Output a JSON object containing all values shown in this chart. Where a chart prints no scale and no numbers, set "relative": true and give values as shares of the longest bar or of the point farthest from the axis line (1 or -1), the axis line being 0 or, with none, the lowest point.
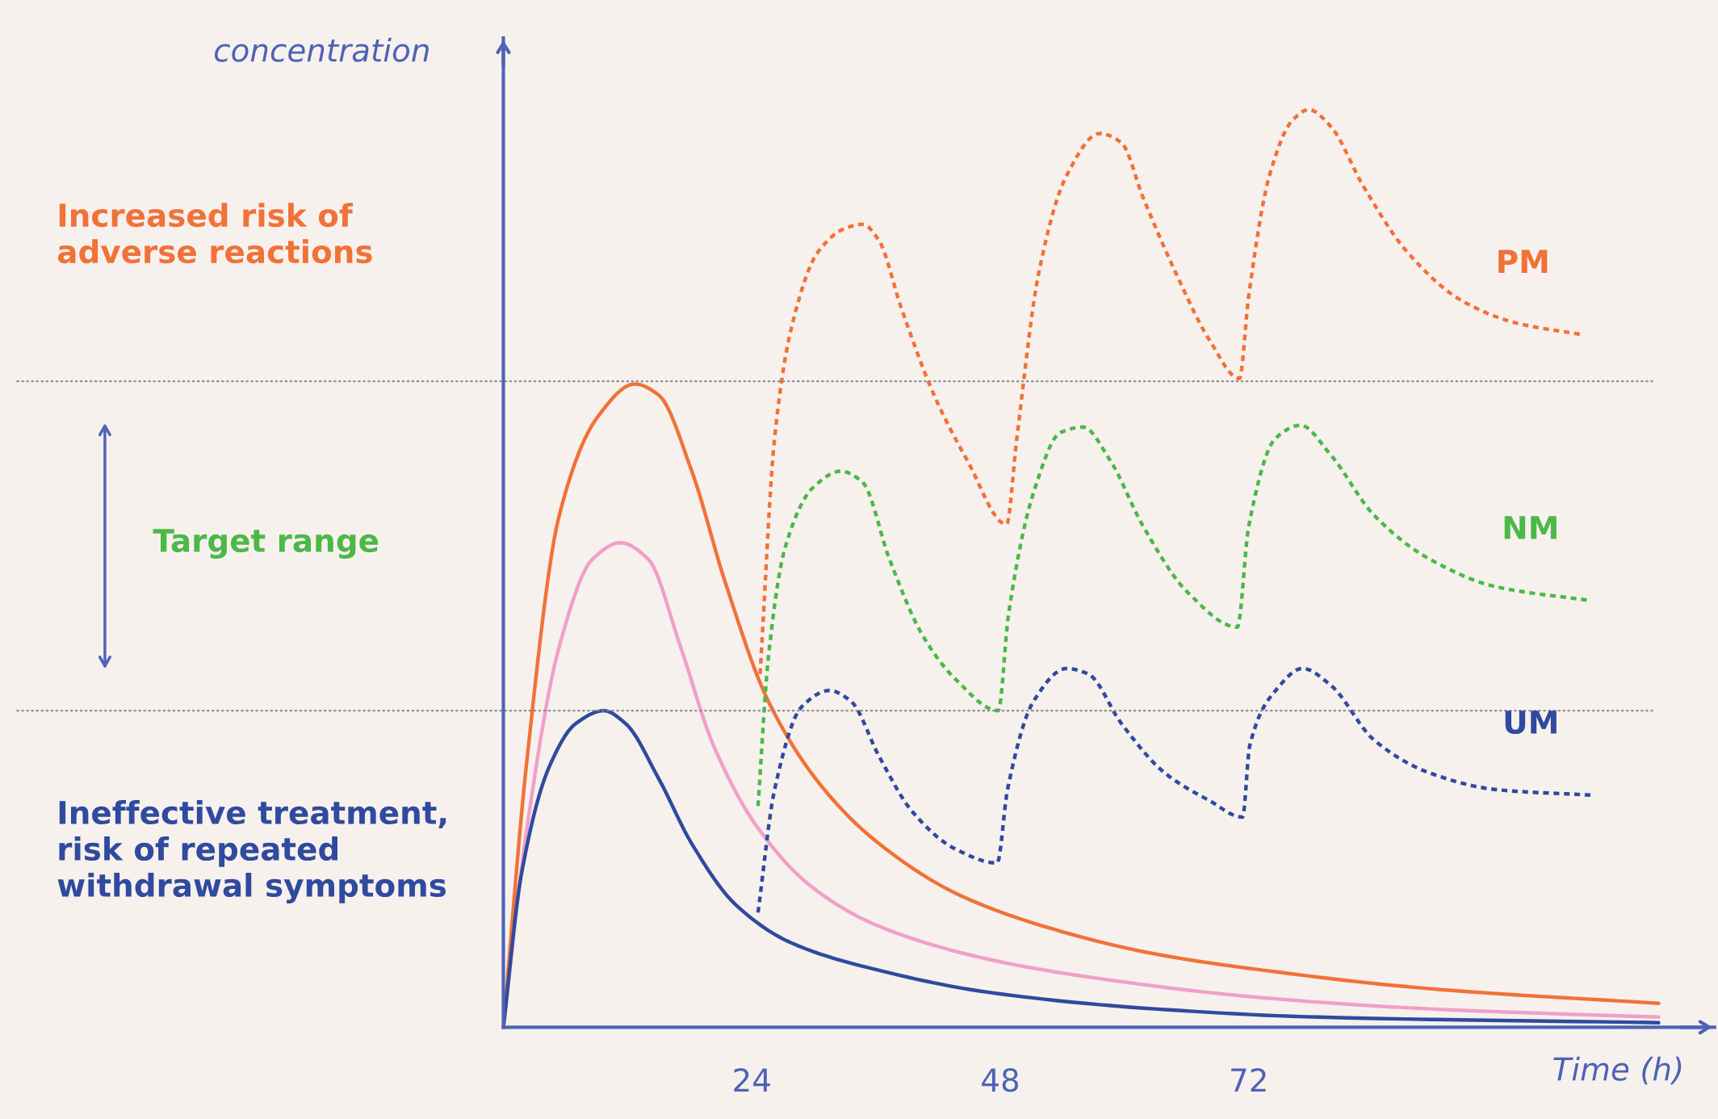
{
  "chart_data": {
    "type": "line",
    "relative": true,
    "xlabel": "Time (h)",
    "ylabel": "concentration",
    "xlim": [
      0,
      117
    ],
    "xticks": [
      24,
      48,
      72
    ],
    "grid": false,
    "legend": false,
    "tick_labels": "x",
    "annotations": [
      "Increased risk of\nadverse reactions",
      "Target range",
      "Ineffective treatment,\nrisk of repeated\nwithdrawal symptoms"
    ],
    "ref_lines": [
      {
        "axis": "y",
        "value": 0.704,
        "color": "#888888",
        "line_style": "dotted"
      },
      {
        "axis": "y",
        "value": 0.345,
        "color": "#888888",
        "line_style": "dotted"
      }
    ],
    "series": [
      {
        "color": "#f07238",
        "line_style": "solid",
        "x": [
          0,
          2.2,
          5.4,
          9.1,
          12.7,
          15,
          18.2,
          21.4,
          25.6,
          31,
          36.3,
          43.7,
          52.2,
          62.9,
          73.5,
          89.5,
          111.6
        ],
        "values": [
          0,
          0.283,
          0.558,
          0.665,
          0.701,
          0.689,
          0.606,
          0.486,
          0.355,
          0.259,
          0.2,
          0.146,
          0.11,
          0.08,
          0.062,
          0.042,
          0.026
        ]
      },
      {
        "color": "#f0a0c8",
        "line_style": "solid",
        "x": [
          0,
          2.2,
          5.4,
          8.6,
          11.3,
          14,
          17.1,
          20.3,
          24.6,
          29.9,
          36.3,
          46.9,
          57.6,
          73.5,
          89.5,
          111.6
        ],
        "values": [
          0,
          0.211,
          0.415,
          0.51,
          0.528,
          0.51,
          0.415,
          0.307,
          0.217,
          0.152,
          0.11,
          0.074,
          0.053,
          0.032,
          0.02,
          0.011
        ]
      },
      {
        "color": "#2f4a9e",
        "line_style": "solid",
        "x": [
          0,
          1.7,
          4.4,
          7,
          9.7,
          11.8,
          15,
          18.2,
          22.4,
          27.8,
          36.3,
          46.9,
          62.9,
          78.8,
          111.6
        ],
        "values": [
          0,
          0.164,
          0.283,
          0.331,
          0.345,
          0.331,
          0.271,
          0.2,
          0.134,
          0.092,
          0.062,
          0.038,
          0.02,
          0.011,
          0.005
        ]
      },
      {
        "name": "PM",
        "color": "#f07238",
        "line_style": "dotted",
        "x": [
          24.8,
          26.2,
          27.8,
          30.4,
          33.1,
          34.7,
          36.3,
          38.4,
          41.6,
          44.8,
          48.6,
          49.6,
          51.7,
          54.4,
          57.6,
          59.7,
          61.8,
          65,
          68.2,
          71.1,
          72,
          74,
          76.2,
          77.8,
          79.9,
          83.1,
          87.3,
          92.7,
          98,
          104.1
        ],
        "values": [
          0.385,
          0.642,
          0.761,
          0.845,
          0.871,
          0.875,
          0.857,
          0.785,
          0.689,
          0.618,
          0.548,
          0.642,
          0.821,
          0.928,
          0.974,
          0.964,
          0.904,
          0.821,
          0.749,
          0.707,
          0.797,
          0.928,
          0.988,
          1.0,
          0.982,
          0.916,
          0.845,
          0.791,
          0.767,
          0.755
        ]
      },
      {
        "name": "NM",
        "color": "#4cb848",
        "line_style": "dotted",
        "x": [
          24.6,
          25.6,
          27.2,
          29.9,
          32.6,
          34.7,
          37.3,
          40.5,
          43.7,
          47.8,
          48.8,
          51.2,
          53.8,
          56,
          58.6,
          61.8,
          66.1,
          70.9,
          72,
          74.6,
          77,
          79.9,
          84.1,
          89.5,
          95.9,
          105
        ],
        "values": [
          0.241,
          0.403,
          0.522,
          0.588,
          0.606,
          0.594,
          0.51,
          0.427,
          0.379,
          0.345,
          0.45,
          0.582,
          0.648,
          0.654,
          0.618,
          0.546,
          0.474,
          0.436,
          0.546,
          0.642,
          0.656,
          0.624,
          0.558,
          0.51,
          0.48,
          0.465
        ]
      },
      {
        "name": "UM",
        "color": "#2f4a9e",
        "line_style": "dotted",
        "x": [
          24.6,
          26.2,
          28.8,
          31.5,
          33.6,
          36.3,
          39.5,
          43.7,
          47.7,
          48.7,
          51.2,
          54.4,
          56.5,
          59.7,
          63.9,
          68.2,
          71.4,
          72.1,
          74.6,
          77.2,
          79.9,
          84.1,
          89.5,
          95.9,
          105
        ],
        "values": [
          0.125,
          0.259,
          0.349,
          0.367,
          0.355,
          0.295,
          0.235,
          0.194,
          0.179,
          0.259,
          0.355,
          0.391,
          0.385,
          0.331,
          0.277,
          0.247,
          0.229,
          0.307,
          0.367,
          0.391,
          0.373,
          0.313,
          0.277,
          0.259,
          0.253
        ]
      }
    ]
  }
}
